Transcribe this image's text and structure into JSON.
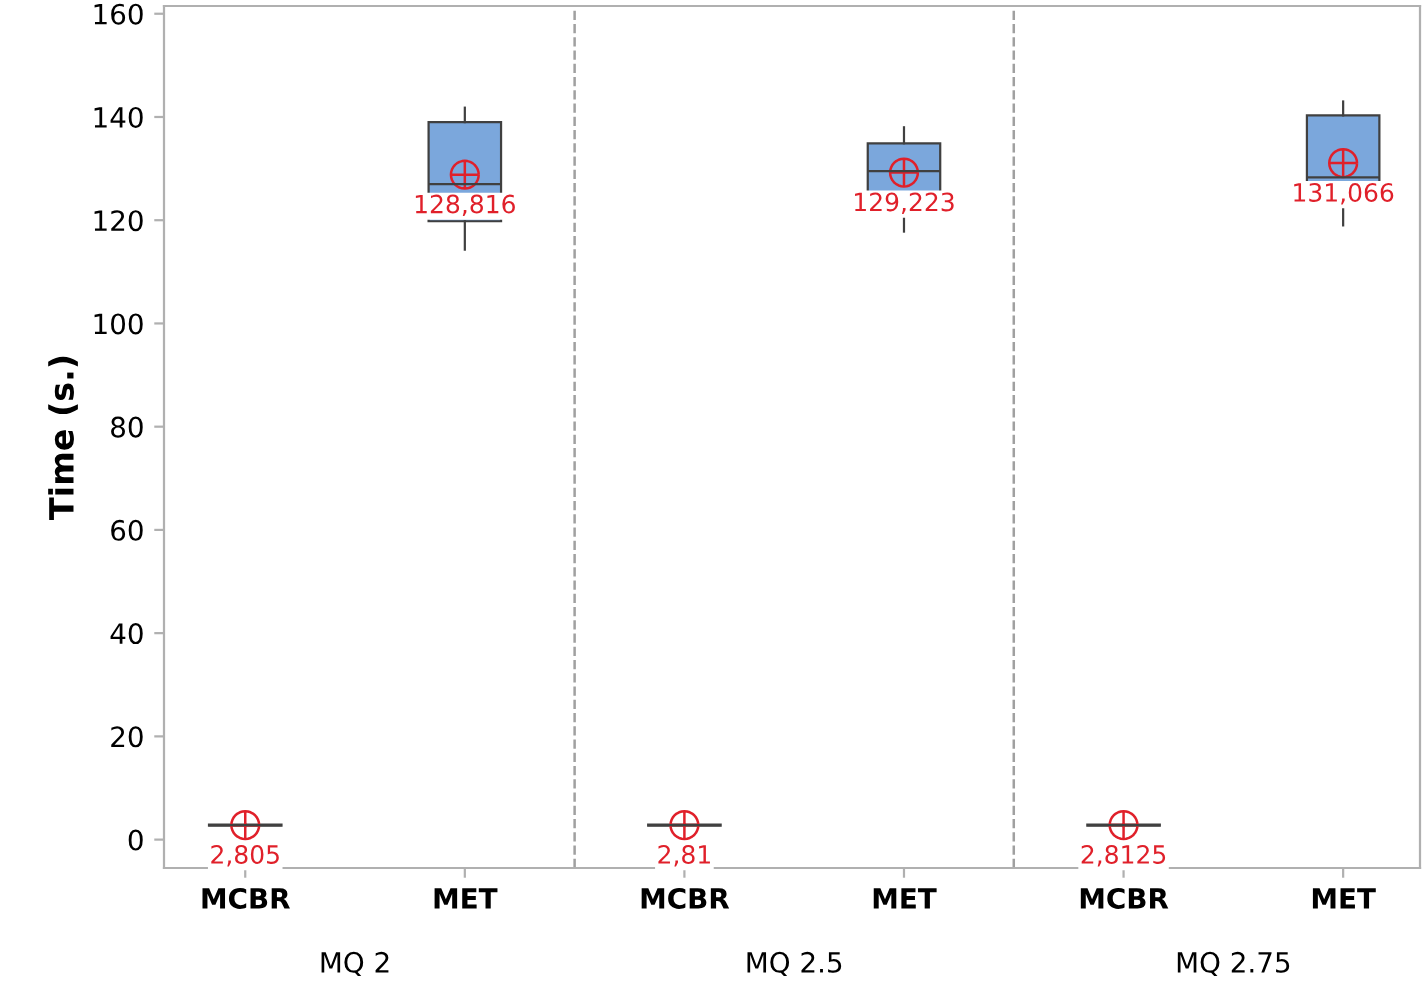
{
  "chart_data": {
    "type": "box",
    "ylabel": "Time (s.)",
    "categories": [
      "MCBR",
      "MET",
      "MCBR",
      "MET",
      "MCBR",
      "MET"
    ],
    "boxes": [
      {
        "low": 2.6,
        "q1": 2.7,
        "median": 2.8,
        "q3": 2.9,
        "high": 3.0,
        "mean": 2.805
      },
      {
        "low": 114.3,
        "q1": 119.8,
        "median": 127,
        "q3": 139,
        "high": 141.8,
        "mean": 128.816
      },
      {
        "low": 2.6,
        "q1": 2.7,
        "median": 2.8,
        "q3": 2.9,
        "high": 3.0,
        "mean": 2.81
      },
      {
        "low": 117.8,
        "q1": 123.6,
        "median": 129.5,
        "q3": 134.9,
        "high": 138,
        "mean": 129.223
      },
      {
        "low": 2.6,
        "q1": 2.7,
        "median": 2.8,
        "q3": 2.9,
        "high": 3.0,
        "mean": 2.8125
      },
      {
        "low": 119,
        "q1": 124.4,
        "median": 128.3,
        "q3": 140.3,
        "high": 143,
        "mean": 131.066
      }
    ],
    "value_labels": [
      "2,805",
      "128,816",
      "2,81",
      "129,223",
      "2,8125",
      "131,066"
    ],
    "color": "#7ba7dc",
    "annotations": [
      "MQ 2",
      "MQ 2.5",
      "MQ 2.75"
    ],
    "ylim": [
      -5.5,
      161.5
    ],
    "yticks": [
      0,
      20,
      40,
      60,
      80,
      100,
      120,
      140,
      160
    ],
    "grid": false,
    "legend": false
  }
}
